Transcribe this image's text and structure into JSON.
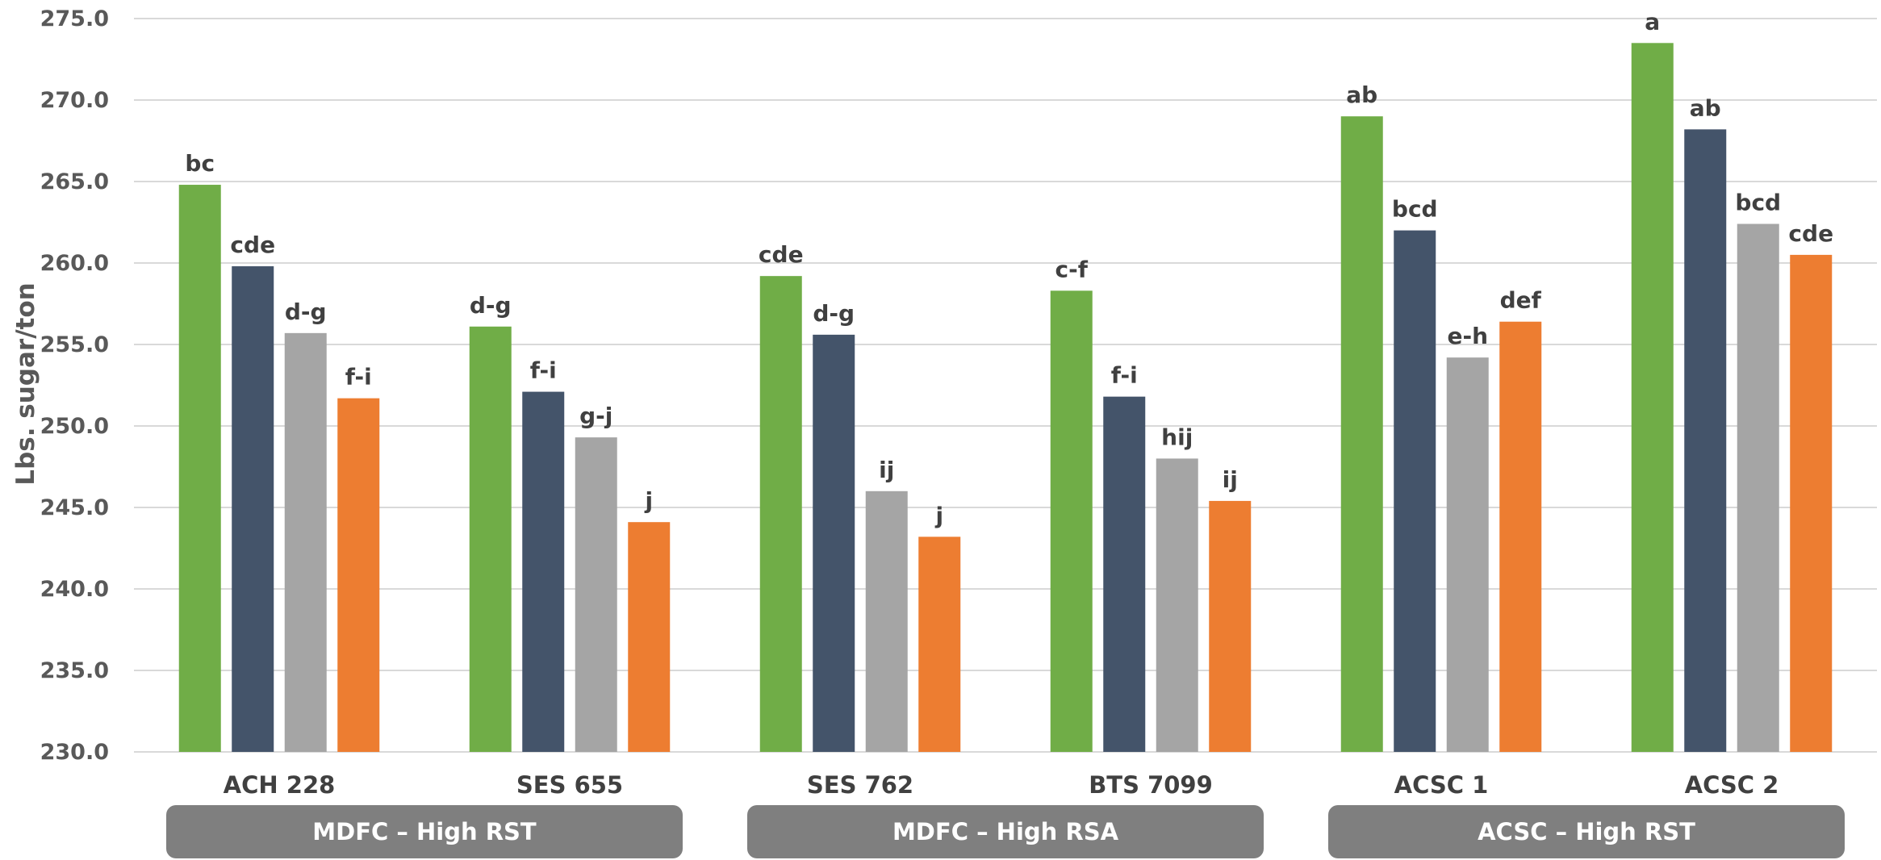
{
  "chart_data": {
    "type": "bar",
    "title": "",
    "xlabel": "",
    "ylabel": "Lbs. sugar/ton",
    "ylim": [
      230,
      275
    ],
    "y_ticks": [
      "230.0",
      "235.0",
      "240.0",
      "245.0",
      "250.0",
      "255.0",
      "260.0",
      "265.0",
      "270.0",
      "275.0"
    ],
    "grid": true,
    "legend": "none",
    "categories": [
      "ACH 228",
      "SES 655",
      "SES 762",
      "BTS 7099",
      "ACSC 1",
      "ACSC 2"
    ],
    "series": [
      {
        "color": "#70AD47",
        "values": [
          264.8,
          256.1,
          259.2,
          258.3,
          269.0,
          273.5
        ],
        "labels": [
          "bc",
          "d-g",
          "cde",
          "c-f",
          "ab",
          "a"
        ]
      },
      {
        "color": "#44546A",
        "values": [
          259.8,
          252.1,
          255.6,
          251.8,
          262.0,
          268.2
        ],
        "labels": [
          "cde",
          "f-i",
          "d-g",
          "f-i",
          "bcd",
          "ab"
        ]
      },
      {
        "color": "#A5A5A5",
        "values": [
          255.7,
          249.3,
          246.0,
          248.0,
          254.2,
          262.4
        ],
        "labels": [
          "d-g",
          "g-j",
          "ij",
          "hij",
          "e-h",
          "bcd"
        ]
      },
      {
        "color": "#ED7D31",
        "values": [
          251.7,
          244.1,
          243.2,
          245.4,
          256.4,
          260.5
        ],
        "labels": [
          "f-i",
          "j",
          "j",
          "ij",
          "def",
          "cde"
        ]
      }
    ],
    "groups": [
      {
        "label": "MDFC – High RST",
        "categories": [
          "ACH 228",
          "SES 655"
        ]
      },
      {
        "label": "MDFC – High RSA",
        "categories": [
          "SES 762",
          "BTS 7099"
        ]
      },
      {
        "label": "ACSC – High RST",
        "categories": [
          "ACSC 1",
          "ACSC 2"
        ]
      }
    ],
    "colors": {
      "grid": "#D9D9D9",
      "group_box": "#7F7F7F"
    }
  }
}
